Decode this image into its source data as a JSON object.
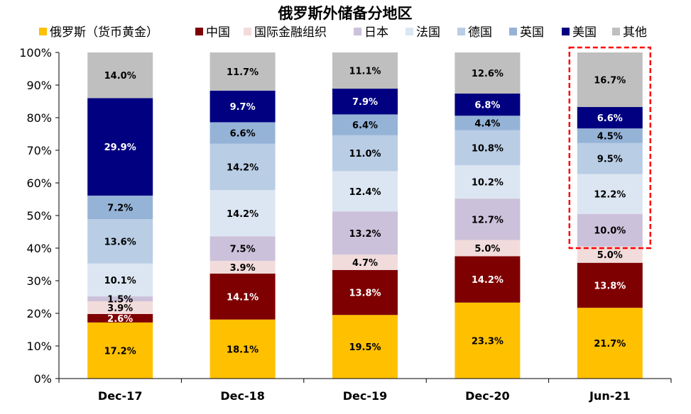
{
  "chart_data": {
    "type": "bar",
    "stacked": true,
    "title": "俄罗斯外储备分地区",
    "categories": [
      "Dec-17",
      "Dec-18",
      "Dec-19",
      "Dec-20",
      "Jun-21"
    ],
    "ylim": [
      0,
      100
    ],
    "yticks": [
      "0%",
      "10%",
      "20%",
      "30%",
      "40%",
      "50%",
      "60%",
      "70%",
      "80%",
      "90%",
      "100%"
    ],
    "legend_position": "top",
    "grid": false,
    "series": [
      {
        "name": "俄罗斯（货币黄金）",
        "color": "#FFC000",
        "values": [
          17.2,
          18.1,
          19.5,
          23.3,
          21.7
        ],
        "labels": [
          "17.2%",
          "18.1%",
          "19.5%",
          "23.3%",
          "21.7%"
        ]
      },
      {
        "name": "中国",
        "color": "#7F0000",
        "values": [
          2.6,
          14.1,
          13.8,
          14.2,
          13.8
        ],
        "labels": [
          "2.6%",
          "14.1%",
          "13.8%",
          "14.2%",
          "13.8%"
        ]
      },
      {
        "name": "国际金融组织",
        "color": "#F2DCDB",
        "values": [
          3.9,
          3.9,
          4.7,
          5.0,
          5.0
        ],
        "labels": [
          "3.9%",
          "3.9%",
          "4.7%",
          "5.0%",
          "5.0%"
        ]
      },
      {
        "name": "日本",
        "color": "#CCC1DA",
        "values": [
          1.5,
          7.5,
          13.2,
          12.7,
          10.0
        ],
        "labels": [
          "1.5%",
          "7.5%",
          "13.2%",
          "12.7%",
          "10.0%"
        ]
      },
      {
        "name": "法国",
        "color": "#DCE6F2",
        "values": [
          10.1,
          14.2,
          12.4,
          10.2,
          12.2
        ],
        "labels": [
          "10.1%",
          "14.2%",
          "12.4%",
          "10.2%",
          "12.2%"
        ]
      },
      {
        "name": "德国",
        "color": "#B9CDE5",
        "values": [
          13.6,
          14.2,
          11.0,
          10.8,
          9.5
        ],
        "labels": [
          "13.6%",
          "14.2%",
          "11.0%",
          "10.8%",
          "9.5%"
        ]
      },
      {
        "name": "英国",
        "color": "#95B3D7",
        "values": [
          7.2,
          6.6,
          6.4,
          4.4,
          4.5
        ],
        "labels": [
          "7.2%",
          "6.6%",
          "6.4%",
          "4.4%",
          "4.5%"
        ]
      },
      {
        "name": "美国",
        "color": "#000080",
        "values": [
          29.9,
          9.7,
          7.9,
          6.8,
          6.6
        ],
        "labels": [
          "29.9%",
          "9.7%",
          "7.9%",
          "6.8%",
          "6.6%"
        ]
      },
      {
        "name": "其他",
        "color": "#BFBFBF",
        "values": [
          14.0,
          11.7,
          11.1,
          12.6,
          16.7
        ],
        "labels": [
          "14.0%",
          "11.7%",
          "11.1%",
          "12.6%",
          "16.7%"
        ]
      }
    ],
    "highlight": {
      "category": "Jun-21",
      "from_value": 40,
      "to_value": 100,
      "color": "#FF0000",
      "style": "dashed"
    }
  }
}
